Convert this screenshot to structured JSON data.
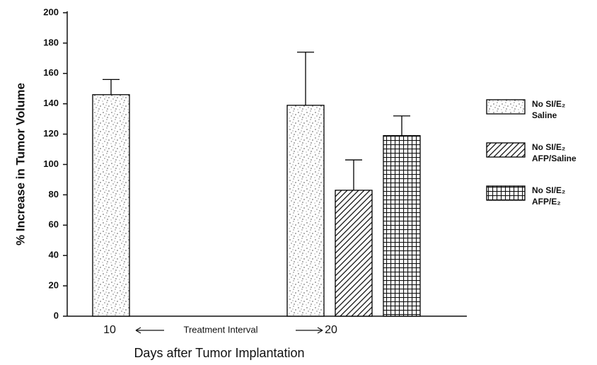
{
  "chart_data": {
    "type": "bar",
    "xlabel": "Days after Tumor Implantation",
    "ylabel": "% Increase in Tumor Volume",
    "annotation": "Treatment Interval",
    "categories": [
      "10",
      "20"
    ],
    "series": [
      {
        "name": "No SI/E₂\nSaline",
        "color": "#000000",
        "pattern": "stipple",
        "values": [
          146,
          139
        ],
        "errors": [
          10,
          35
        ]
      },
      {
        "name": "No SI/E₂\nAFP/Saline",
        "color": "#000000",
        "pattern": "hatch",
        "values": [
          null,
          83
        ],
        "errors": [
          null,
          20
        ]
      },
      {
        "name": "No SI/E₂\nAFP/E₂",
        "color": "#000000",
        "pattern": "grid",
        "values": [
          null,
          119
        ],
        "errors": [
          null,
          13
        ]
      }
    ],
    "ylim": [
      0,
      200
    ],
    "yticks": [
      0,
      20,
      40,
      60,
      80,
      100,
      120,
      140,
      160,
      180,
      200
    ],
    "legend": "right"
  }
}
